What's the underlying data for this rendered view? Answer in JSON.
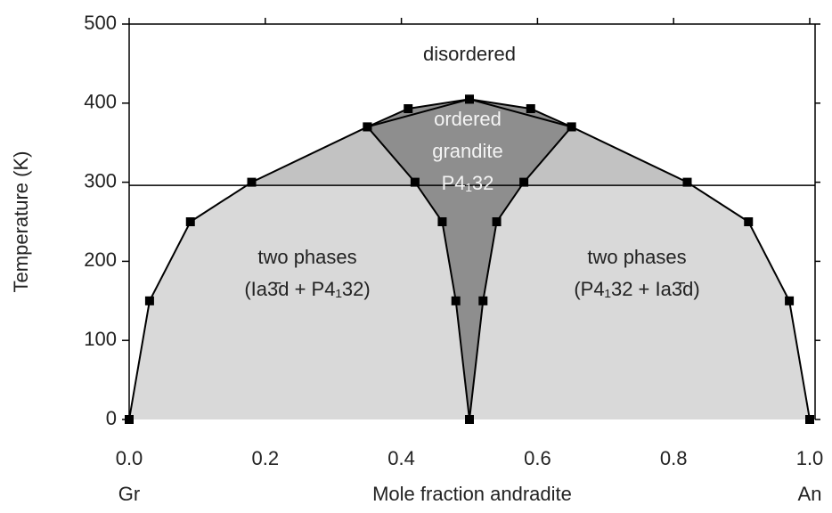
{
  "chart_data": {
    "type": "line",
    "xlabel": "Mole fraction andradite",
    "ylabel": "Temperature (K)",
    "end_labels": [
      "Gr",
      "An"
    ],
    "xlim": [
      0,
      1
    ],
    "ylim": [
      0,
      500
    ],
    "xticks": [
      {
        "value": 0,
        "label": "0.0"
      },
      0.2,
      0.4,
      0.6,
      0.8,
      {
        "value": 1,
        "label": "1.0"
      }
    ],
    "yticks": [
      0,
      100,
      200,
      300,
      400,
      500
    ],
    "hline": 296,
    "series": [
      {
        "color": "#d9d9d9",
        "upper_color": "#c2c2c2",
        "x": [
          0,
          0.03,
          0.09,
          0.18,
          0.35,
          0.5,
          0.65,
          0.82,
          0.91,
          0.97,
          1
        ],
        "values": [
          0,
          150,
          250,
          300,
          370,
          405,
          370,
          300,
          250,
          150,
          0
        ]
      },
      {
        "color": "#8e8e8e",
        "x": [
          0.35,
          0.42,
          0.46,
          0.48,
          0.5,
          0.52,
          0.54,
          0.58,
          0.65,
          0.59,
          0.5,
          0.41
        ],
        "values": [
          370,
          300,
          250,
          150,
          0,
          150,
          250,
          300,
          370,
          393,
          405,
          393
        ]
      }
    ],
    "annotations": [
      [
        "disordered"
      ],
      [
        "ordered",
        "grandite",
        "P4₁32"
      ],
      [
        "two phases",
        "(Ia3̄d + P4₁32)"
      ],
      [
        "two phases",
        "(P4₁32 + Ia3̄d)"
      ]
    ]
  }
}
